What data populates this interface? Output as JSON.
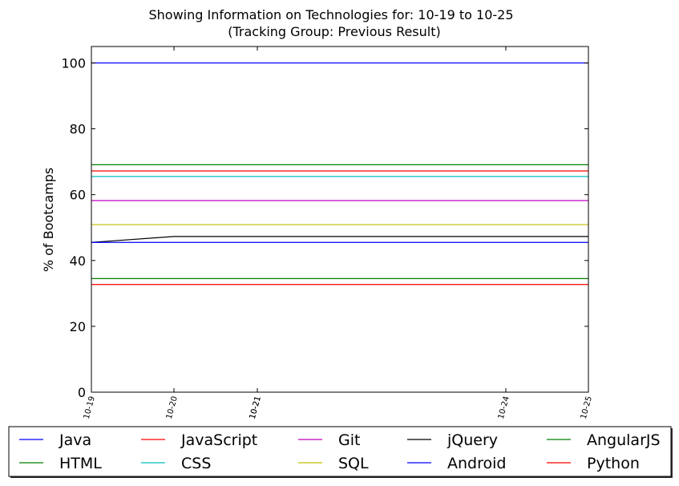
{
  "chart_data": {
    "type": "line",
    "title": "Showing Information on Technologies for: 10-19 to 10-25",
    "subtitle": "(Tracking Group: Previous Result)",
    "xlabel": "",
    "ylabel": "% of Bootcamps",
    "x": [
      "10-19",
      "10-20",
      "10-21",
      "10-24",
      "10-25"
    ],
    "xticks": [
      "10-19",
      "10-20",
      "10-21",
      "10-21",
      "10-24",
      "10-25"
    ],
    "ylim": [
      0,
      105
    ],
    "yticks": [
      0,
      20,
      40,
      60,
      80,
      100
    ],
    "grid": false,
    "legend_position": "bottom",
    "series": [
      {
        "name": "Java",
        "color": "#0000ff",
        "values": [
          100,
          100,
          100,
          100,
          100
        ]
      },
      {
        "name": "HTML",
        "color": "#008000",
        "values": [
          34.5,
          34.5,
          34.5,
          34.5,
          34.5
        ]
      },
      {
        "name": "JavaScript",
        "color": "#ff0000",
        "values": [
          67.2,
          67.2,
          67.2,
          67.2,
          67.2
        ]
      },
      {
        "name": "CSS",
        "color": "#00bfbf",
        "values": [
          65.5,
          65.5,
          65.5,
          65.5,
          65.5
        ]
      },
      {
        "name": "Git",
        "color": "#bf00bf",
        "values": [
          58.2,
          58.2,
          58.2,
          58.2,
          58.2
        ]
      },
      {
        "name": "SQL",
        "color": "#bfbf00",
        "values": [
          50.9,
          50.9,
          50.9,
          50.9,
          50.9
        ]
      },
      {
        "name": "jQuery",
        "color": "#000000",
        "values": [
          45.5,
          47.3,
          47.3,
          47.3,
          47.3
        ]
      },
      {
        "name": "Android",
        "color": "#0000ff",
        "values": [
          45.5,
          45.5,
          45.5,
          45.5,
          45.5
        ]
      },
      {
        "name": "AngularJS",
        "color": "#008000",
        "values": [
          69.1,
          69.1,
          69.1,
          69.1,
          69.1
        ]
      },
      {
        "name": "Python",
        "color": "#ff0000",
        "values": [
          32.7,
          32.7,
          32.7,
          32.7,
          32.7
        ]
      }
    ]
  }
}
